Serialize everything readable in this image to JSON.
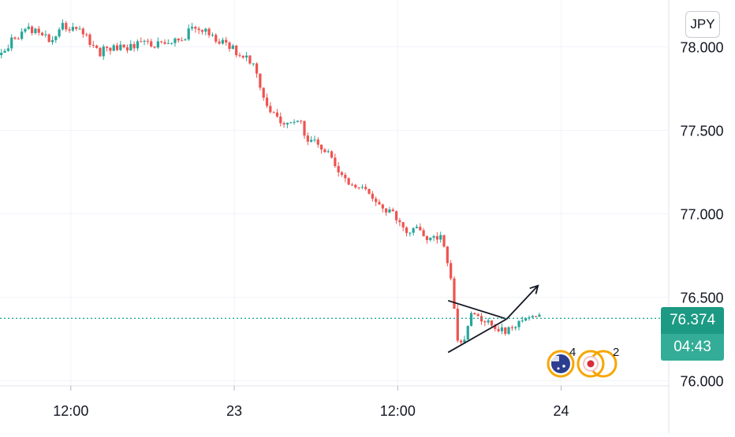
{
  "currency": "JPY",
  "last_price_label": "76.374",
  "countdown_label": "04:43",
  "colors": {
    "up": "#26a69a",
    "down": "#ef5350",
    "grid": "#f0f3fa",
    "axis_text": "#131722",
    "price_line": "#26a69a",
    "drawing": "#131722",
    "event_ring": "#f7a600"
  },
  "events": [
    {
      "icon": "au-flag-event-icon",
      "count": "4"
    },
    {
      "icon": "target-event-icon",
      "count": "2"
    }
  ],
  "chart_data": {
    "type": "candlestick",
    "y_axis": {
      "ticks": [
        "78.000",
        "77.500",
        "77.000",
        "76.500",
        "76.000"
      ],
      "tick_values": [
        78.0,
        77.5,
        77.0,
        76.5,
        76.0
      ],
      "range": [
        75.97,
        78.28
      ]
    },
    "x_axis": {
      "tick_labels": [
        "12:00",
        "23",
        "12:00",
        "24"
      ],
      "tick_hours": [
        12,
        24,
        36,
        48
      ],
      "range_hours": [
        6.8,
        55.9
      ]
    },
    "grid": true,
    "last_price": 76.374,
    "price_path": [
      [
        6.9,
        77.95
      ],
      [
        7.5,
        78.02
      ],
      [
        8.6,
        78.1
      ],
      [
        9.6,
        78.1
      ],
      [
        10.4,
        78.05
      ],
      [
        10.8,
        78.05
      ],
      [
        11.4,
        78.12
      ],
      [
        12.3,
        78.12
      ],
      [
        13.2,
        78.05
      ],
      [
        14.1,
        77.96
      ],
      [
        14.8,
        78.0
      ],
      [
        16.0,
        78.0
      ],
      [
        17.2,
        78.02
      ],
      [
        18.5,
        78.02
      ],
      [
        19.5,
        78.02
      ],
      [
        20.3,
        78.05
      ],
      [
        21.0,
        78.12
      ],
      [
        21.8,
        78.1
      ],
      [
        22.4,
        78.05
      ],
      [
        23.2,
        78.02
      ],
      [
        24.0,
        77.98
      ],
      [
        24.8,
        77.93
      ],
      [
        25.4,
        77.92
      ],
      [
        25.9,
        77.75
      ],
      [
        26.4,
        77.64
      ],
      [
        27.0,
        77.57
      ],
      [
        28.0,
        77.55
      ],
      [
        28.8,
        77.55
      ],
      [
        29.4,
        77.45
      ],
      [
        30.3,
        77.4
      ],
      [
        31.1,
        77.35
      ],
      [
        31.8,
        77.25
      ],
      [
        32.4,
        77.15
      ],
      [
        33.2,
        77.15
      ],
      [
        33.8,
        77.12
      ],
      [
        34.4,
        77.08
      ],
      [
        35.1,
        77.03
      ],
      [
        35.9,
        76.98
      ],
      [
        36.5,
        76.92
      ],
      [
        37.0,
        76.88
      ],
      [
        37.5,
        76.95
      ],
      [
        38.1,
        76.83
      ],
      [
        38.8,
        76.87
      ],
      [
        39.3,
        76.86
      ],
      [
        39.6,
        76.75
      ],
      [
        40.0,
        76.55
      ],
      [
        40.4,
        76.25
      ],
      [
        40.9,
        76.25
      ],
      [
        41.5,
        76.42
      ],
      [
        42.1,
        76.38
      ],
      [
        42.8,
        76.35
      ],
      [
        43.5,
        76.3
      ],
      [
        44.2,
        76.3
      ],
      [
        44.8,
        76.35
      ],
      [
        45.4,
        76.38
      ],
      [
        46.0,
        76.37
      ],
      [
        46.6,
        76.374
      ]
    ],
    "triangle_pattern": {
      "upper_line": [
        [
          39.7,
          76.48
        ],
        [
          44.0,
          76.37
        ]
      ],
      "lower_line": [
        [
          39.7,
          76.17
        ],
        [
          44.0,
          76.37
        ]
      ],
      "breakout_arrow": [
        [
          44.0,
          76.37
        ],
        [
          46.3,
          76.57
        ]
      ]
    }
  }
}
